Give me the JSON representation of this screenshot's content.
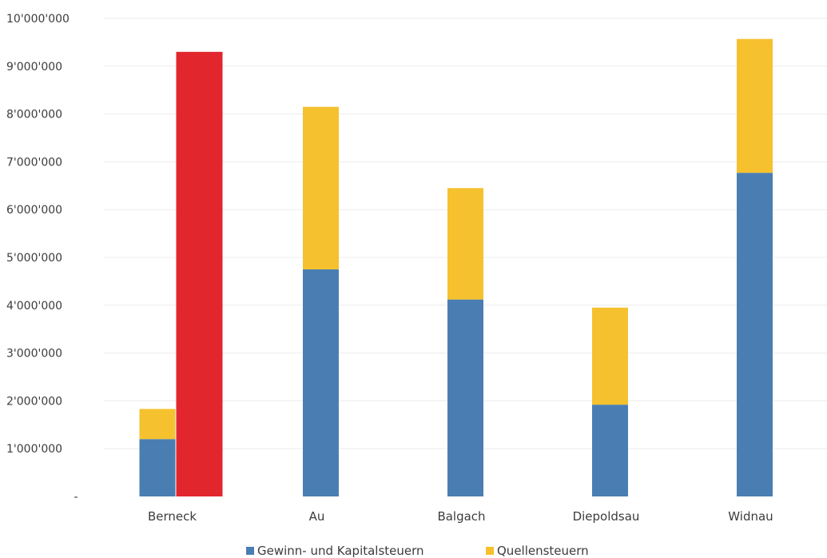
{
  "chart_data": {
    "type": "bar",
    "stacked": true,
    "categories": [
      "Berneck",
      "Au",
      "Balgach",
      "Diepoldsau",
      "Widnau"
    ],
    "series": [
      {
        "name": "Gewinn- und Kapitalsteuern",
        "color": "#4a7eb2",
        "values": [
          1200000,
          4750000,
          4120000,
          1920000,
          6770000
        ]
      },
      {
        "name": "Quellensteuern",
        "color": "#f5c12e",
        "values": [
          630000,
          3400000,
          2330000,
          2030000,
          2800000
        ]
      }
    ],
    "extra_bars": [
      {
        "category": "Berneck",
        "value": 9300000,
        "color": "#e2262e"
      }
    ],
    "ylim": [
      0,
      10000000
    ],
    "yticks": [
      0,
      1000000,
      2000000,
      3000000,
      4000000,
      5000000,
      6000000,
      7000000,
      8000000,
      9000000,
      10000000
    ],
    "ytick_labels": [
      "-",
      "1'000'000",
      "2'000'000",
      "3'000'000",
      "4'000'000",
      "5'000'000",
      "6'000'000",
      "7'000'000",
      "8'000'000",
      "9'000'000",
      "10'000'000"
    ],
    "grid": true,
    "legend_position": "bottom"
  }
}
